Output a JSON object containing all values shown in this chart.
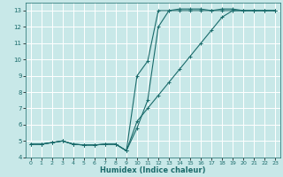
{
  "xlabel": "Humidex (Indice chaleur)",
  "xlim": [
    -0.5,
    23.5
  ],
  "ylim": [
    4,
    13.5
  ],
  "yticks": [
    4,
    5,
    6,
    7,
    8,
    9,
    10,
    11,
    12,
    13
  ],
  "xticks": [
    0,
    1,
    2,
    3,
    4,
    5,
    6,
    7,
    8,
    9,
    10,
    11,
    12,
    13,
    14,
    15,
    16,
    17,
    18,
    19,
    20,
    21,
    22,
    23
  ],
  "background_color": "#c8e8e8",
  "grid_color": "#ffffff",
  "line_color": "#1a6b6b",
  "series": [
    {
      "x": [
        0,
        1,
        2,
        3,
        4,
        5,
        6,
        7,
        8,
        9,
        10,
        11,
        12,
        13,
        14,
        15,
        16,
        17,
        18,
        19,
        20,
        21,
        22,
        23
      ],
      "y": [
        4.8,
        4.8,
        4.9,
        5.0,
        4.8,
        4.75,
        4.75,
        4.8,
        4.8,
        4.4,
        5.8,
        7.5,
        12.0,
        13.0,
        13.1,
        13.1,
        13.1,
        13.0,
        13.1,
        13.1,
        13.0,
        13.0,
        13.0,
        13.0
      ]
    },
    {
      "x": [
        0,
        1,
        2,
        3,
        4,
        5,
        6,
        7,
        8,
        9,
        10,
        11,
        12,
        13,
        14,
        15,
        16,
        17,
        18,
        19,
        20,
        21,
        22,
        23
      ],
      "y": [
        4.8,
        4.8,
        4.9,
        5.0,
        4.8,
        4.75,
        4.75,
        4.8,
        4.8,
        4.4,
        9.0,
        9.9,
        13.0,
        13.0,
        13.0,
        13.0,
        13.0,
        13.0,
        13.0,
        13.0,
        13.0,
        13.0,
        13.0,
        13.0
      ]
    },
    {
      "x": [
        0,
        1,
        2,
        3,
        4,
        5,
        6,
        7,
        8,
        9,
        10,
        11,
        12,
        13,
        14,
        15,
        16,
        17,
        18,
        19,
        20,
        21,
        22,
        23
      ],
      "y": [
        4.8,
        4.8,
        4.9,
        5.0,
        4.8,
        4.75,
        4.75,
        4.8,
        4.8,
        4.4,
        6.2,
        7.0,
        7.8,
        8.6,
        9.4,
        10.2,
        11.0,
        11.8,
        12.6,
        13.0,
        13.0,
        13.0,
        13.0,
        13.0
      ]
    }
  ]
}
